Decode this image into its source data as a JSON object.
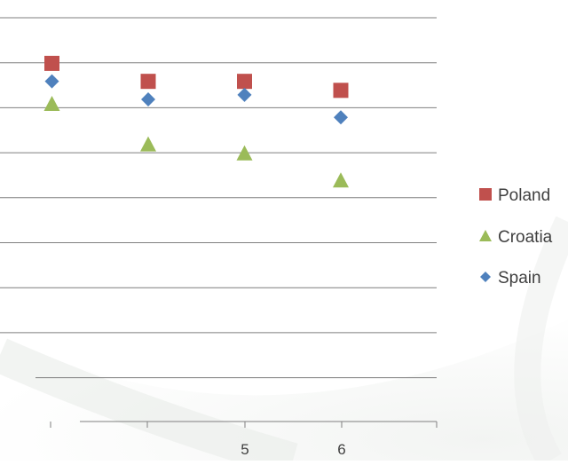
{
  "chart_data": {
    "type": "scatter",
    "title": "",
    "xlabel": "",
    "ylabel": "",
    "x_ticks": [
      "",
      "",
      "5",
      "6",
      ""
    ],
    "grid": true,
    "legend_position": "right",
    "series": [
      {
        "name": "Poland",
        "color": "#c0504d",
        "marker": "square",
        "points": [
          {
            "x": 3,
            "y": 8.0
          },
          {
            "x": 4,
            "y": 7.6
          },
          {
            "x": 5,
            "y": 7.6
          },
          {
            "x": 6,
            "y": 7.4
          }
        ]
      },
      {
        "name": "Croatia",
        "color": "#9bbb59",
        "marker": "triangle",
        "points": [
          {
            "x": 3,
            "y": 7.1
          },
          {
            "x": 4,
            "y": 6.2
          },
          {
            "x": 5,
            "y": 6.0
          },
          {
            "x": 6,
            "y": 5.4
          }
        ]
      },
      {
        "name": "Spain",
        "color": "#4f81bd",
        "marker": "diamond",
        "points": [
          {
            "x": 3,
            "y": 7.6
          },
          {
            "x": 4,
            "y": 7.2
          },
          {
            "x": 5,
            "y": 7.3
          },
          {
            "x": 6,
            "y": 6.8
          }
        ]
      }
    ]
  }
}
